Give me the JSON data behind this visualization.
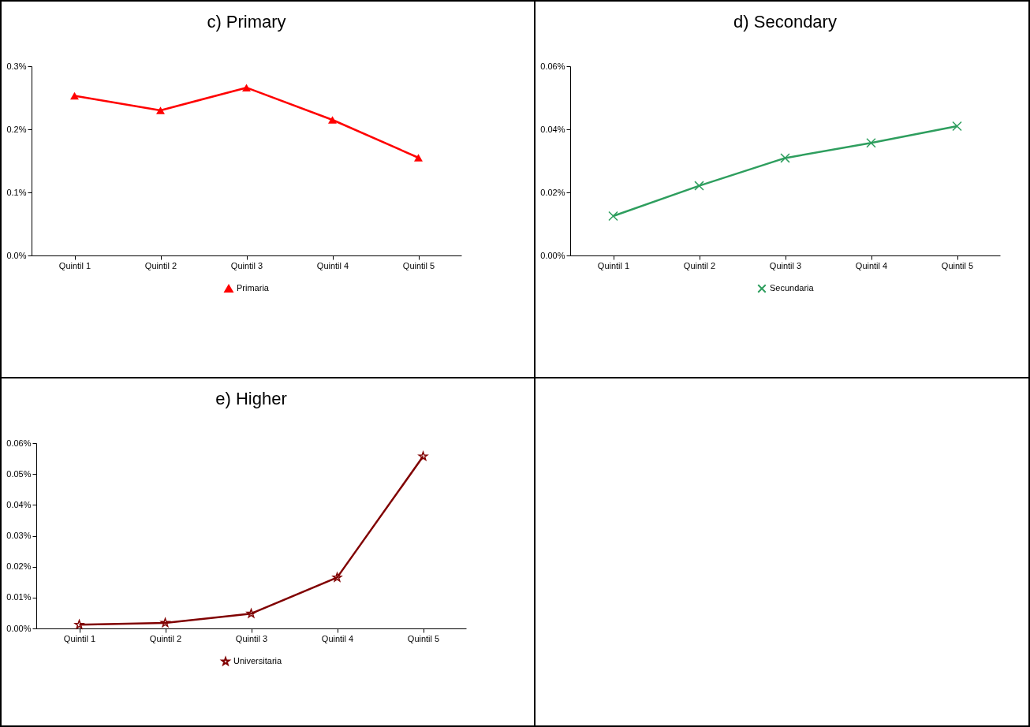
{
  "chart_data": [
    {
      "type": "line",
      "title": "c) Primary",
      "categories": [
        "Quintil 1",
        "Quintil 2",
        "Quintil 3",
        "Quintil 4",
        "Quintil 5"
      ],
      "series": [
        {
          "name": "Primaria",
          "color": "#ff0000",
          "values": [
            0.253,
            0.23,
            0.266,
            0.215,
            0.155
          ]
        }
      ],
      "ylim": [
        0,
        0.3
      ],
      "yticks": [
        {
          "value": 0,
          "label": "0.0%"
        },
        {
          "value": 0.1,
          "label": "0.1%"
        },
        {
          "value": 0.2,
          "label": "0.2%"
        },
        {
          "value": 0.3,
          "label": "0.3%"
        }
      ],
      "marker": "triangle",
      "legend": "bottom",
      "grid": false
    },
    {
      "type": "line",
      "title": "d) Secondary",
      "categories": [
        "Quintil 1",
        "Quintil 2",
        "Quintil 3",
        "Quintil 4",
        "Quintil 5"
      ],
      "series": [
        {
          "name": "Secundaria",
          "color": "#2e9e5e",
          "values": [
            0.0125,
            0.0221,
            0.0309,
            0.0357,
            0.041
          ]
        }
      ],
      "ylim": [
        0,
        0.06
      ],
      "yticks": [
        {
          "value": 0,
          "label": "0.00%"
        },
        {
          "value": 0.02,
          "label": "0.02%"
        },
        {
          "value": 0.04,
          "label": "0.04%"
        },
        {
          "value": 0.06,
          "label": "0.06%"
        }
      ],
      "marker": "cross",
      "legend": "bottom",
      "grid": false
    },
    {
      "type": "line",
      "title": "e) Higher",
      "categories": [
        "Quintil 1",
        "Quintil 2",
        "Quintil 3",
        "Quintil 4",
        "Quintil 5"
      ],
      "series": [
        {
          "name": "Universitaria",
          "color": "#800000",
          "values": [
            0.0012,
            0.0018,
            0.0048,
            0.0165,
            0.0557
          ]
        }
      ],
      "ylim": [
        0,
        0.06
      ],
      "yticks": [
        {
          "value": 0,
          "label": "0.00%"
        },
        {
          "value": 0.01,
          "label": "0.01%"
        },
        {
          "value": 0.02,
          "label": "0.02%"
        },
        {
          "value": 0.03,
          "label": "0.03%"
        },
        {
          "value": 0.04,
          "label": "0.04%"
        },
        {
          "value": 0.05,
          "label": "0.05%"
        },
        {
          "value": 0.06,
          "label": "0.06%"
        }
      ],
      "marker": "star",
      "legend": "bottom",
      "grid": false
    }
  ]
}
